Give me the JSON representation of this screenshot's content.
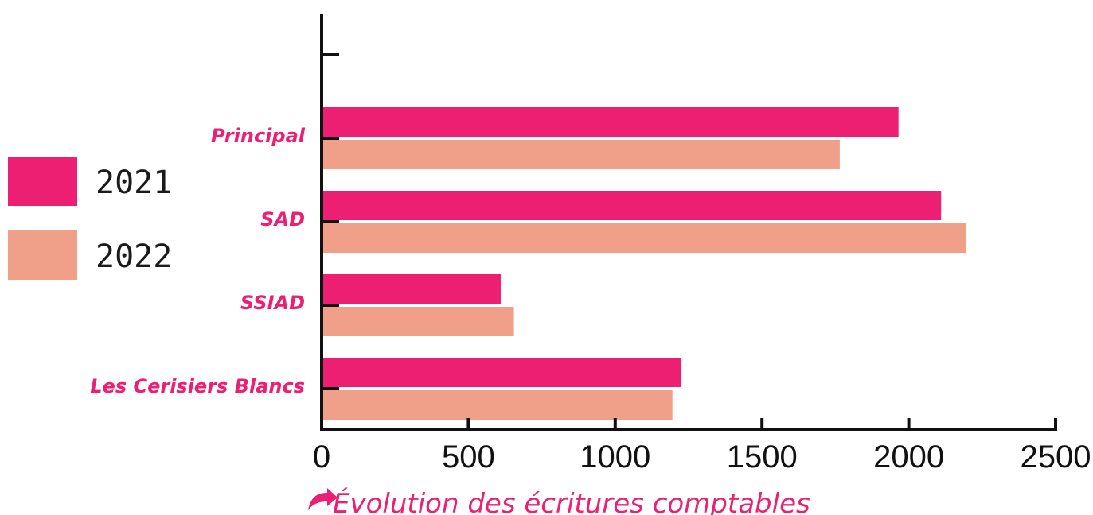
{
  "colors": {
    "series_2021": "#ec1f72",
    "series_2022": "#f0a088",
    "category_label": "#ec1f72",
    "axis": "#111111",
    "caption": "#ec1f72"
  },
  "caption": {
    "icon": "curved-arrow-icon",
    "text": "Évolution des écritures comptables"
  },
  "legend": {
    "placement": "left",
    "items": [
      {
        "label": "2021",
        "color": "#ec1f72"
      },
      {
        "label": "2022",
        "color": "#f0a088"
      }
    ]
  },
  "chart_data": {
    "type": "bar",
    "orientation": "horizontal",
    "categories": [
      "Principal",
      "SAD",
      "SSIAD",
      "Les Cerisiers Blancs"
    ],
    "series": [
      {
        "name": "2021",
        "values": [
          1965,
          2110,
          610,
          1225
        ]
      },
      {
        "name": "2022",
        "values": [
          1765,
          2195,
          655,
          1195
        ]
      }
    ],
    "xlim": [
      0,
      2500
    ],
    "xticks": [
      0,
      500,
      1000,
      1500,
      2000,
      2500
    ],
    "xtick_labels": [
      "0",
      "500",
      "1000",
      "1500",
      "2000",
      "2500"
    ],
    "title": "",
    "xlabel": "",
    "ylabel": "",
    "grid": false,
    "legend_position": "left"
  }
}
